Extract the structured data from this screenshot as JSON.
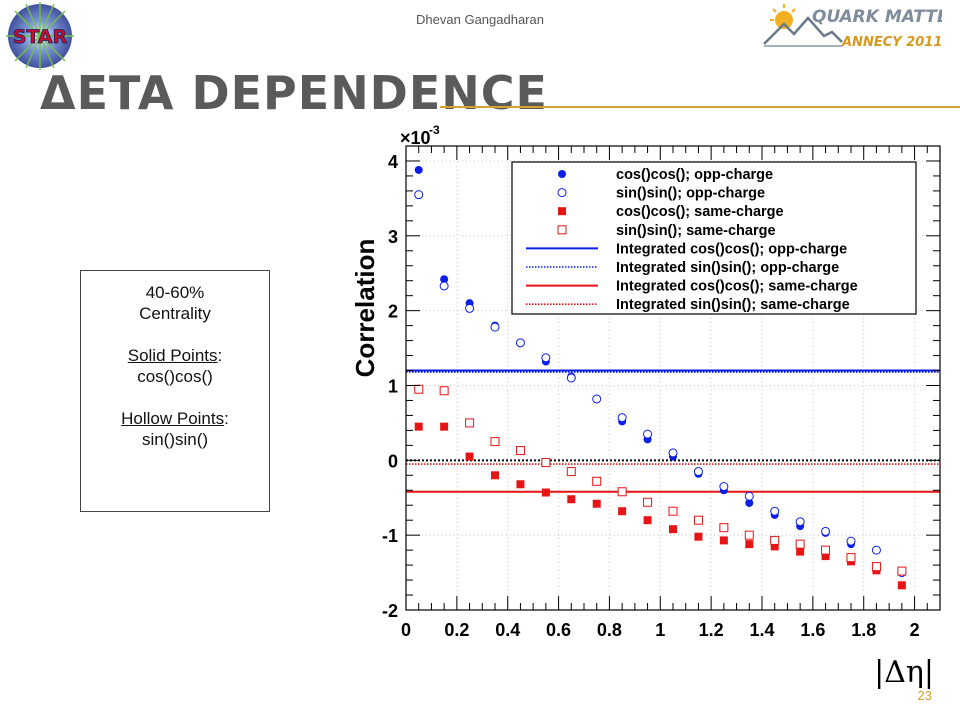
{
  "header": {
    "author": "Dhevan Gangadharan",
    "star_logo_text": "STAR",
    "conference_logo_text": "QUARK MATTER",
    "conference_logo_sub": "ANNECY 2011",
    "accent_color": "#d8a232"
  },
  "slide": {
    "title": "ΔETA DEPENDENCE",
    "page_number": "23"
  },
  "info_box": {
    "line1": "40-60%",
    "line2": "Centrality",
    "solid_heading": "Solid Points",
    "solid_colon": ":",
    "solid_value": "cos()cos()",
    "hollow_heading": "Hollow Points",
    "hollow_colon": ":",
    "hollow_value": "sin()sin()"
  },
  "chart_data": {
    "type": "scatter",
    "title": "",
    "xlabel": "|Δη|",
    "ylabel": "Correlation",
    "scale_label": "×10",
    "scale_exponent": "-3",
    "xlim": [
      0,
      2.1
    ],
    "ylim": [
      -2,
      4.2
    ],
    "x_ticks": [
      0,
      0.2,
      0.4,
      0.6,
      0.8,
      1,
      1.2,
      1.4,
      1.6,
      1.8,
      2
    ],
    "x_tick_labels": [
      "0",
      "0.2",
      "0.4",
      "0.6",
      "0.8",
      "1",
      "1.2",
      "1.4",
      "1.6",
      "1.8",
      "2"
    ],
    "y_ticks": [
      -2,
      -1,
      0,
      1,
      2,
      3,
      4
    ],
    "y_tick_labels": [
      "-2",
      "-1",
      "0",
      "1",
      "2",
      "3",
      "4"
    ],
    "grid": true,
    "legend_position": "top-right",
    "x": [
      0.05,
      0.15,
      0.25,
      0.35,
      0.45,
      0.55,
      0.65,
      0.75,
      0.85,
      0.95,
      1.05,
      1.15,
      1.25,
      1.35,
      1.45,
      1.55,
      1.65,
      1.75,
      1.85,
      1.95
    ],
    "series": [
      {
        "name": "cos()cos(); opp-charge",
        "color": "#0a1ee6",
        "marker": "filled-circle",
        "values": [
          3.88,
          2.42,
          2.1,
          1.8,
          1.57,
          1.32,
          1.12,
          0.82,
          0.52,
          0.28,
          0.05,
          -0.18,
          -0.4,
          -0.57,
          -0.73,
          -0.88,
          -0.97,
          -1.12,
          -1.2,
          -1.5
        ]
      },
      {
        "name": "sin()sin(); opp-charge",
        "color": "#0a1ee6",
        "marker": "hollow-circle",
        "values": [
          3.55,
          2.33,
          2.03,
          1.78,
          1.57,
          1.37,
          1.1,
          0.82,
          0.57,
          0.35,
          0.1,
          -0.15,
          -0.35,
          -0.48,
          -0.68,
          -0.82,
          -0.95,
          -1.08,
          -1.2,
          -1.5
        ]
      },
      {
        "name": "cos()cos(); same-charge",
        "color": "#e61414",
        "marker": "filled-square",
        "values": [
          0.45,
          0.45,
          0.05,
          -0.2,
          -0.32,
          -0.43,
          -0.52,
          -0.58,
          -0.68,
          -0.8,
          -0.92,
          -1.02,
          -1.07,
          -1.12,
          -1.15,
          -1.22,
          -1.28,
          -1.35,
          -1.47,
          -1.67
        ]
      },
      {
        "name": "sin()sin(); same-charge",
        "color": "#e61414",
        "marker": "hollow-square",
        "values": [
          0.95,
          0.93,
          0.5,
          0.25,
          0.13,
          -0.03,
          -0.15,
          -0.28,
          -0.42,
          -0.56,
          -0.68,
          -0.8,
          -0.9,
          -1.0,
          -1.07,
          -1.12,
          -1.2,
          -1.3,
          -1.42,
          -1.48
        ]
      }
    ],
    "integrated": [
      {
        "name": "Integrated cos()cos(); opp-charge",
        "color": "#0a1ee6",
        "style": "solid",
        "value": 1.2
      },
      {
        "name": "Integrated sin()sin(); opp-charge",
        "color": "#0a1ee6",
        "style": "dotted",
        "value": 1.18
      },
      {
        "name": "Integrated cos()cos(); same-charge",
        "color": "#e61414",
        "style": "solid",
        "value": -0.42
      },
      {
        "name": "Integrated sin()sin(); same-charge",
        "color": "#e61414",
        "style": "dotted",
        "value": -0.05
      }
    ],
    "zero_line": {
      "value": 0,
      "color": "#000000",
      "style": "dotted"
    }
  }
}
